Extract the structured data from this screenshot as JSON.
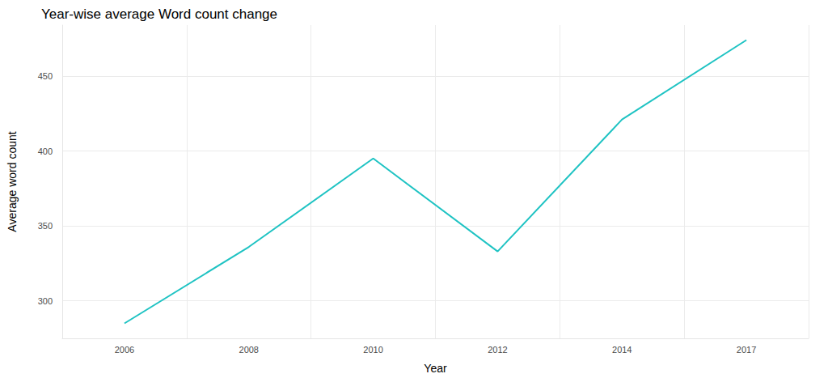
{
  "chart_data": {
    "type": "line",
    "title": "Year-wise average Word count change",
    "x_label": "Year",
    "y_label": "Average word count",
    "categories": [
      "2006",
      "2008",
      "2010",
      "2012",
      "2014",
      "2017"
    ],
    "values": [
      285,
      336,
      395,
      333,
      421,
      474
    ],
    "color": "#1fc3c3",
    "ylim": [
      275,
      484
    ],
    "yticks": [
      300,
      350,
      400,
      450
    ],
    "grid": true
  }
}
